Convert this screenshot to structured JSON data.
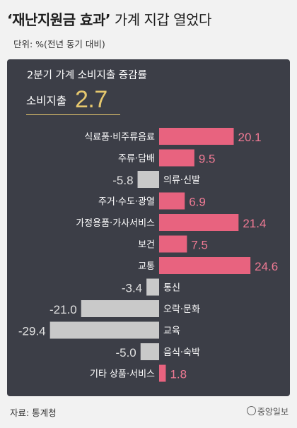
{
  "headline": {
    "quoted": "‘재난지원금 효과’",
    "rest": " 가계 지갑 열었다"
  },
  "unit": "단위: %(전년 동기 대비)",
  "panel_title": "2분기 가계 소비지출 증감률",
  "total": {
    "label": "소비지출",
    "value": "2.7"
  },
  "source": "자료: 통계청",
  "logo_text": "중앙일보",
  "colors": {
    "positive": "#e8637f",
    "negative": "#c9c9c9",
    "positive_text": "#f07a94",
    "negative_text": "#e0e0e0",
    "panel": "#3c3e47",
    "accent": "#e6c86e"
  },
  "chart_data": {
    "type": "bar",
    "orientation": "horizontal",
    "categories": [
      "식료품·비주류음료",
      "주류·담배",
      "의류·신발",
      "주거·수도·광열",
      "가정용품·가사서비스",
      "보건",
      "교통",
      "통신",
      "오락·문화",
      "교육",
      "음식·숙박",
      "기타 상품·서비스"
    ],
    "values": [
      20.1,
      9.5,
      -5.8,
      6.9,
      21.4,
      7.5,
      24.6,
      -3.4,
      -21.0,
      -29.4,
      -5.0,
      1.8
    ],
    "value_labels": [
      "20.1",
      "9.5",
      "-5.8",
      "6.9",
      "21.4",
      "7.5",
      "24.6",
      "-3.4",
      "-21.0",
      "-29.4",
      "-5.0",
      "1.8"
    ],
    "xlim": [
      -29.4,
      24.6
    ]
  }
}
